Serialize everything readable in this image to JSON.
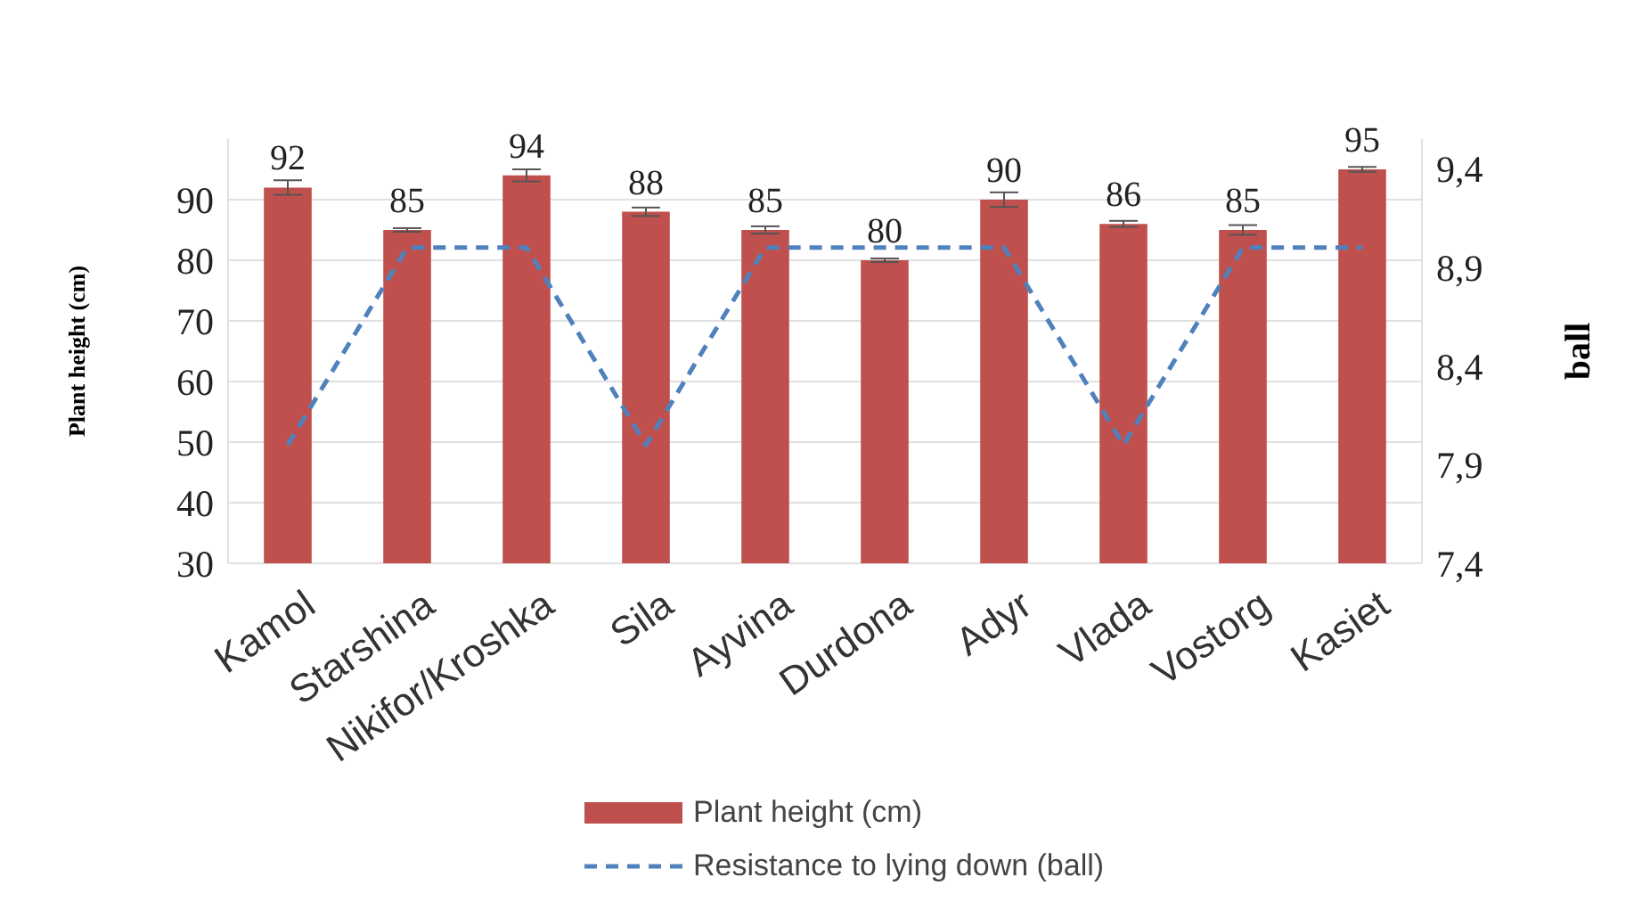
{
  "chart_data": {
    "type": "bar",
    "categories": [
      "Kamol",
      "Starshina",
      "Nikifor/Kroshka",
      "Sila",
      "Ayvina",
      "Durdona",
      "Adyr",
      "Vlada",
      "Vostorg",
      "Kasiet"
    ],
    "series": [
      {
        "name": "Plant height (cm)",
        "color": "#c0504d",
        "values": [
          92,
          85,
          94,
          88,
          85,
          80,
          90,
          86,
          85,
          95
        ],
        "value_labels": [
          "92",
          "85",
          "94",
          "88",
          "85",
          "80",
          "90",
          "86",
          "85",
          "95"
        ],
        "errors": [
          1.2,
          0.3,
          1,
          0.7,
          0.6,
          0.3,
          1.2,
          0.5,
          0.8,
          0.4
        ]
      },
      {
        "name": "Resistance to lying down (ball)",
        "type": "line",
        "axis": "y2",
        "color": "#4f81bd",
        "line_style": "dashed",
        "marker": "none",
        "values": [
          8.0,
          9.0,
          9.0,
          8.0,
          9.0,
          9.0,
          9.0,
          8.0,
          9.0,
          9.0
        ]
      }
    ],
    "ylabel": "Plant height (cm)",
    "y2label": "ball",
    "ylim": [
      30,
      100
    ],
    "yticks": [
      30,
      40,
      50,
      60,
      70,
      80,
      90
    ],
    "y2lim": [
      7.4,
      9.55
    ],
    "y2ticks": [
      {
        "value": 7.4,
        "label": "7,4"
      },
      {
        "value": 7.9,
        "label": "7,9"
      },
      {
        "value": 8.4,
        "label": "8,4"
      },
      {
        "value": 8.9,
        "label": "8,9"
      },
      {
        "value": 9.4,
        "label": "9,4"
      }
    ],
    "grid": "y",
    "legend": "bottom"
  }
}
